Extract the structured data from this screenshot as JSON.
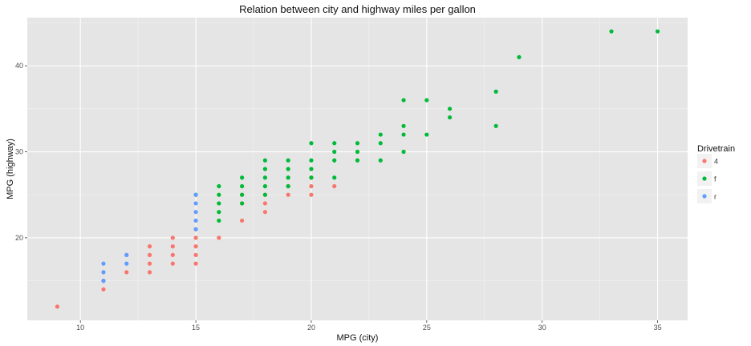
{
  "chart_data": {
    "type": "scatter",
    "title": "Relation between city and highway miles per gallon",
    "xlabel": "MPG (city)",
    "ylabel": "MPG (highway)",
    "xlim": [
      7.7,
      36.3
    ],
    "ylim": [
      10.4,
      45.6
    ],
    "xticks": [
      10,
      15,
      20,
      25,
      30,
      35
    ],
    "yticks": [
      20,
      30,
      40
    ],
    "grid": true,
    "background": "#e5e5e5",
    "legend": {
      "title": "Drivetrain",
      "placement": "right",
      "entries": [
        "4",
        "f",
        "r"
      ]
    },
    "series": [
      {
        "name": "4",
        "color": "#f8766d",
        "points": [
          [
            9,
            12
          ],
          [
            11,
            14
          ],
          [
            11,
            15
          ],
          [
            12,
            16
          ],
          [
            12,
            18
          ],
          [
            13,
            16
          ],
          [
            13,
            17
          ],
          [
            13,
            18
          ],
          [
            13,
            19
          ],
          [
            14,
            17
          ],
          [
            14,
            18
          ],
          [
            14,
            19
          ],
          [
            14,
            20
          ],
          [
            15,
            17
          ],
          [
            15,
            18
          ],
          [
            15,
            19
          ],
          [
            15,
            20
          ],
          [
            15,
            21
          ],
          [
            16,
            20
          ],
          [
            17,
            22
          ],
          [
            17,
            24
          ],
          [
            17,
            25
          ],
          [
            18,
            23
          ],
          [
            18,
            24
          ],
          [
            18,
            25
          ],
          [
            19,
            25
          ],
          [
            19,
            26
          ],
          [
            20,
            25
          ],
          [
            20,
            26
          ],
          [
            20,
            27
          ],
          [
            21,
            26
          ]
        ]
      },
      {
        "name": "f",
        "color": "#00ba38",
        "points": [
          [
            15,
            25
          ],
          [
            16,
            22
          ],
          [
            16,
            23
          ],
          [
            16,
            24
          ],
          [
            16,
            25
          ],
          [
            16,
            26
          ],
          [
            17,
            24
          ],
          [
            17,
            25
          ],
          [
            17,
            26
          ],
          [
            17,
            27
          ],
          [
            18,
            25
          ],
          [
            18,
            26
          ],
          [
            18,
            27
          ],
          [
            18,
            28
          ],
          [
            18,
            29
          ],
          [
            19,
            26
          ],
          [
            19,
            27
          ],
          [
            19,
            28
          ],
          [
            19,
            29
          ],
          [
            20,
            27
          ],
          [
            20,
            28
          ],
          [
            20,
            29
          ],
          [
            20,
            31
          ],
          [
            21,
            27
          ],
          [
            21,
            29
          ],
          [
            21,
            30
          ],
          [
            21,
            31
          ],
          [
            22,
            29
          ],
          [
            22,
            30
          ],
          [
            22,
            31
          ],
          [
            23,
            29
          ],
          [
            23,
            31
          ],
          [
            23,
            32
          ],
          [
            24,
            30
          ],
          [
            24,
            32
          ],
          [
            24,
            33
          ],
          [
            24,
            36
          ],
          [
            25,
            32
          ],
          [
            25,
            36
          ],
          [
            26,
            34
          ],
          [
            26,
            35
          ],
          [
            28,
            33
          ],
          [
            28,
            37
          ],
          [
            29,
            41
          ],
          [
            33,
            44
          ],
          [
            35,
            44
          ]
        ]
      },
      {
        "name": "r",
        "color": "#619cff",
        "points": [
          [
            11,
            15
          ],
          [
            11,
            16
          ],
          [
            11,
            17
          ],
          [
            12,
            17
          ],
          [
            12,
            18
          ],
          [
            15,
            21
          ],
          [
            15,
            22
          ],
          [
            15,
            23
          ],
          [
            15,
            24
          ],
          [
            15,
            25
          ]
        ]
      }
    ]
  }
}
